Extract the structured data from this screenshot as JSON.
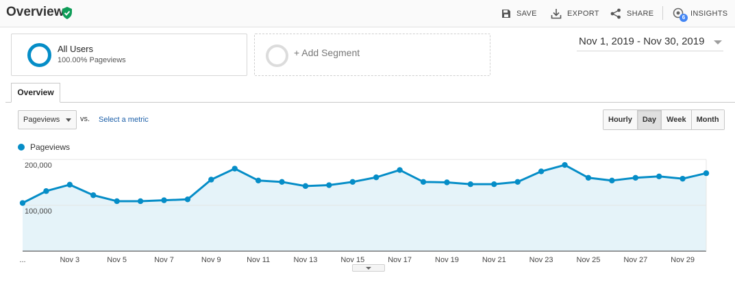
{
  "header": {
    "title": "Overview",
    "verified_icon": "shield-check-icon",
    "toolbar": {
      "save_label": "SAVE",
      "export_label": "EXPORT",
      "share_label": "SHARE",
      "insights_label": "INSIGHTS",
      "insights_count": "6"
    }
  },
  "segments": {
    "active": {
      "title": "All Users",
      "subtitle": "100.00% Pageviews"
    },
    "add_label": "+ Add Segment"
  },
  "date_range": "Nov 1, 2019 - Nov 30, 2019",
  "tabs": [
    {
      "label": "Overview",
      "active": true
    }
  ],
  "controls": {
    "metric": "Pageviews",
    "vs_label": "vs.",
    "select_metric_label": "Select a metric",
    "granularity": [
      "Hourly",
      "Day",
      "Week",
      "Month"
    ],
    "granularity_active": "Day"
  },
  "colors": {
    "series": "#058dc7",
    "area": "#e5f3f9",
    "accent_badge": "#4285f4",
    "verified": "#0f9d58"
  },
  "chart_data": {
    "type": "area",
    "series": [
      {
        "name": "Pageviews",
        "x": [
          "Nov 1",
          "Nov 2",
          "Nov 3",
          "Nov 4",
          "Nov 5",
          "Nov 6",
          "Nov 7",
          "Nov 8",
          "Nov 9",
          "Nov 10",
          "Nov 11",
          "Nov 12",
          "Nov 13",
          "Nov 14",
          "Nov 15",
          "Nov 16",
          "Nov 17",
          "Nov 18",
          "Nov 19",
          "Nov 20",
          "Nov 21",
          "Nov 22",
          "Nov 23",
          "Nov 24",
          "Nov 25",
          "Nov 26",
          "Nov 27",
          "Nov 28",
          "Nov 29",
          "Nov 30"
        ],
        "values": [
          105000,
          131000,
          145000,
          122000,
          109000,
          109000,
          111000,
          113000,
          156000,
          180000,
          154000,
          151000,
          142000,
          144000,
          151000,
          161000,
          177000,
          151000,
          150000,
          146000,
          146000,
          151000,
          174000,
          188000,
          160000,
          154000,
          160000,
          163000,
          158000,
          170000
        ]
      }
    ],
    "y_ticks": [
      {
        "value": 200000,
        "label": "200,000"
      },
      {
        "value": 100000,
        "label": "100,000"
      }
    ],
    "x_ticks": [
      "...",
      "Nov 3",
      "Nov 5",
      "Nov 7",
      "Nov 9",
      "Nov 11",
      "Nov 13",
      "Nov 15",
      "Nov 17",
      "Nov 19",
      "Nov 21",
      "Nov 23",
      "Nov 25",
      "Nov 27",
      "Nov 29"
    ],
    "ylim": [
      0,
      200000
    ],
    "grid": true,
    "legend": "top-left"
  }
}
